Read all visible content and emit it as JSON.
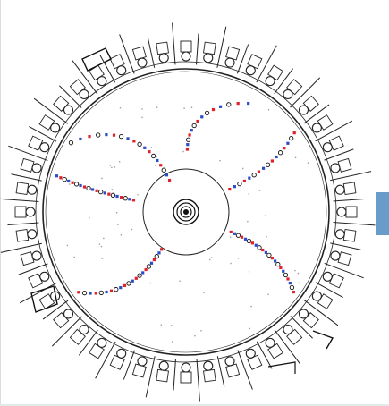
{
  "colors": {
    "background": "#ffffff",
    "detector_line": "#222222",
    "hit_black": "#111111",
    "hit_red": "#e0202a",
    "hit_blue": "#2a4cc8",
    "scatter_hit": "#9aa0a8",
    "frame_line": "#d8dde2",
    "side_tab": "#6a9cc9"
  },
  "detector": {
    "outer_ring_module_count": 44,
    "radial_spoke_count": 44
  },
  "tracks": [
    {
      "name": "upper-left-arc",
      "hit_count": 18
    },
    {
      "name": "left-horizontal",
      "hit_count": 20
    },
    {
      "name": "lower-left-arc",
      "hit_count": 22
    },
    {
      "name": "right-upper",
      "hit_count": 16
    },
    {
      "name": "right-lower",
      "hit_count": 22
    },
    {
      "name": "top-arc",
      "hit_count": 14
    }
  ],
  "side_panel": {
    "icon": "panel-toggle-icon"
  }
}
